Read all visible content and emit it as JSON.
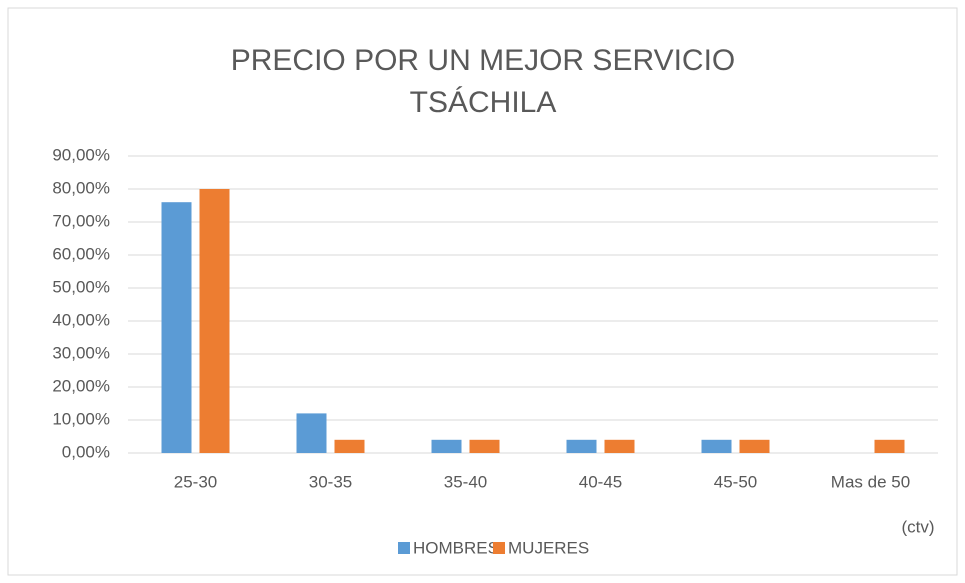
{
  "chart_data": {
    "type": "bar",
    "title": [
      "PRECIO POR UN MEJOR SERVICIO",
      "TSÁCHILA"
    ],
    "x_label": "(ctv)",
    "categories": [
      "25-30",
      "30-35",
      "35-40",
      "40-45",
      "45-50",
      "Mas de 50"
    ],
    "series": [
      {
        "name": "HOMBRES",
        "color": "#5b9bd5",
        "values": [
          76,
          12,
          4,
          4,
          4,
          0
        ]
      },
      {
        "name": "MUJERES",
        "color": "#ed7d31",
        "values": [
          80,
          4,
          4,
          4,
          4,
          4
        ]
      }
    ],
    "ylim": [
      0,
      90
    ],
    "yticks": [
      {
        "value": 0,
        "label": "0,00%"
      },
      {
        "value": 10,
        "label": "10,00%"
      },
      {
        "value": 20,
        "label": "20,00%"
      },
      {
        "value": 30,
        "label": "30,00%"
      },
      {
        "value": 40,
        "label": "40,00%"
      },
      {
        "value": 50,
        "label": "50,00%"
      },
      {
        "value": 60,
        "label": "60,00%"
      },
      {
        "value": 70,
        "label": "70,00%"
      },
      {
        "value": 80,
        "label": "80,00%"
      },
      {
        "value": 90,
        "label": "90,00%"
      }
    ],
    "grid": true,
    "legend": "bottom"
  }
}
